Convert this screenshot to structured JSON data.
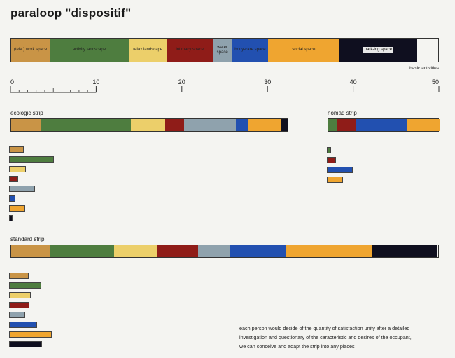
{
  "title": "paraloop \"dispositif\"",
  "activities": {
    "caption": "basic activities",
    "segments": [
      {
        "label": "(tele.) work space",
        "value": 4.5,
        "color": "#c99446"
      },
      {
        "label": "activity landscape",
        "value": 9.2,
        "color": "#4e7d3f"
      },
      {
        "label": "relax landscape",
        "value": 4.5,
        "color": "#eccf6a"
      },
      {
        "label": "intimacy space",
        "value": 5.3,
        "color": "#8f1c18"
      },
      {
        "label": "water space",
        "value": 2.3,
        "color": "#8fa2ad"
      },
      {
        "label": "body-care space",
        "value": 4.2,
        "color": "#2250b0"
      },
      {
        "label": "social space",
        "value": 8.3,
        "color": "#efa530"
      },
      {
        "label": "park-ing space",
        "value": 9.1,
        "color": "#0f0f1f",
        "dark": true
      }
    ]
  },
  "scale": {
    "ticks": [
      {
        "value": 0,
        "label": "0"
      },
      {
        "value": 10,
        "label": "10"
      },
      {
        "value": 20,
        "label": "20"
      },
      {
        "value": 30,
        "label": "30"
      },
      {
        "value": 40,
        "label": "40"
      },
      {
        "value": 50,
        "label": "50"
      }
    ],
    "min": 0,
    "max": 50
  },
  "ecologic": {
    "title": "ecologic strip",
    "segments": [
      {
        "value": 3.5,
        "color": "#c99446"
      },
      {
        "value": 10.5,
        "color": "#4e7d3f"
      },
      {
        "value": 4,
        "color": "#eccf6a"
      },
      {
        "value": 2.2,
        "color": "#8f1c18"
      },
      {
        "value": 6,
        "color": "#8fa2ad"
      },
      {
        "value": 1.5,
        "color": "#2250b0"
      },
      {
        "value": 3.8,
        "color": "#efa530"
      },
      {
        "value": 0.8,
        "color": "#0f0f1f"
      }
    ]
  },
  "nomad": {
    "title": "nomad strip",
    "segments": [
      {
        "value": 1,
        "color": "#4e7d3f"
      },
      {
        "value": 2.2,
        "color": "#8f1c18"
      },
      {
        "value": 6,
        "color": "#2250b0"
      },
      {
        "value": 3.8,
        "color": "#efa530"
      }
    ]
  },
  "standard": {
    "title": "standard strip",
    "segments": [
      {
        "value": 4.5,
        "color": "#c99446"
      },
      {
        "value": 7.5,
        "color": "#4e7d3f"
      },
      {
        "value": 5,
        "color": "#eccf6a"
      },
      {
        "value": 4.8,
        "color": "#8f1c18"
      },
      {
        "value": 3.8,
        "color": "#8fa2ad"
      },
      {
        "value": 6.5,
        "color": "#2250b0"
      },
      {
        "value": 10,
        "color": "#efa530"
      },
      {
        "value": 7.6,
        "color": "#0f0f1f"
      }
    ]
  },
  "note": {
    "lines": [
      "each person would decide of the quantity of satisfaction unity after a detailed",
      "investigation and questionary of the caracteristic and desires of the occupant,",
      "we can conceive and adapt the strip into any places"
    ]
  }
}
